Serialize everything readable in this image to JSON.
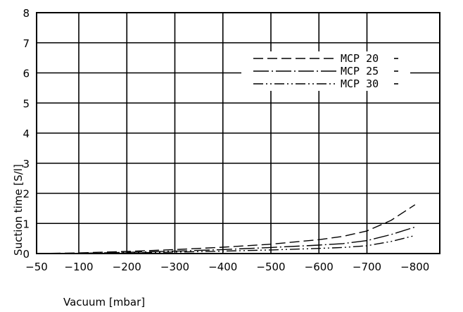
{
  "chart_data": {
    "type": "line",
    "xlabel": "Vacuum [mbar]",
    "ylabel": "Suction time [S/l]",
    "xlim": [
      -50,
      -800
    ],
    "ylim": [
      0,
      8
    ],
    "x_ticks": [
      "-50",
      "-100",
      "-200",
      "-300",
      "-400",
      "-500",
      "-600",
      "-700",
      "-800"
    ],
    "y_ticks": [
      "0",
      "1",
      "2",
      "3",
      "4",
      "5",
      "6",
      "7",
      "8"
    ],
    "grid": true,
    "legend_position": "top-right",
    "series": [
      {
        "name": "MCP 20",
        "dash": "long-dash",
        "points": [
          [
            -50,
            0.0
          ],
          [
            -100,
            0.02
          ],
          [
            -200,
            0.07
          ],
          [
            -300,
            0.13
          ],
          [
            -400,
            0.21
          ],
          [
            -500,
            0.31
          ],
          [
            -600,
            0.46
          ],
          [
            -650,
            0.57
          ],
          [
            -700,
            0.75
          ],
          [
            -750,
            1.1
          ],
          [
            -800,
            1.62
          ]
        ]
      },
      {
        "name": "MCP 25",
        "dash": "dash-dot",
        "points": [
          [
            -50,
            0.0
          ],
          [
            -100,
            0.01
          ],
          [
            -200,
            0.04
          ],
          [
            -300,
            0.08
          ],
          [
            -400,
            0.13
          ],
          [
            -500,
            0.2
          ],
          [
            -600,
            0.28
          ],
          [
            -650,
            0.33
          ],
          [
            -700,
            0.43
          ],
          [
            -750,
            0.63
          ],
          [
            -800,
            0.88
          ]
        ]
      },
      {
        "name": "MCP 30",
        "dash": "dash-dot-dot",
        "points": [
          [
            -50,
            0.0
          ],
          [
            -100,
            0.0
          ],
          [
            -200,
            0.02
          ],
          [
            -300,
            0.05
          ],
          [
            -400,
            0.08
          ],
          [
            -500,
            0.12
          ],
          [
            -600,
            0.17
          ],
          [
            -650,
            0.2
          ],
          [
            -700,
            0.26
          ],
          [
            -750,
            0.4
          ],
          [
            -800,
            0.6
          ]
        ]
      }
    ]
  }
}
